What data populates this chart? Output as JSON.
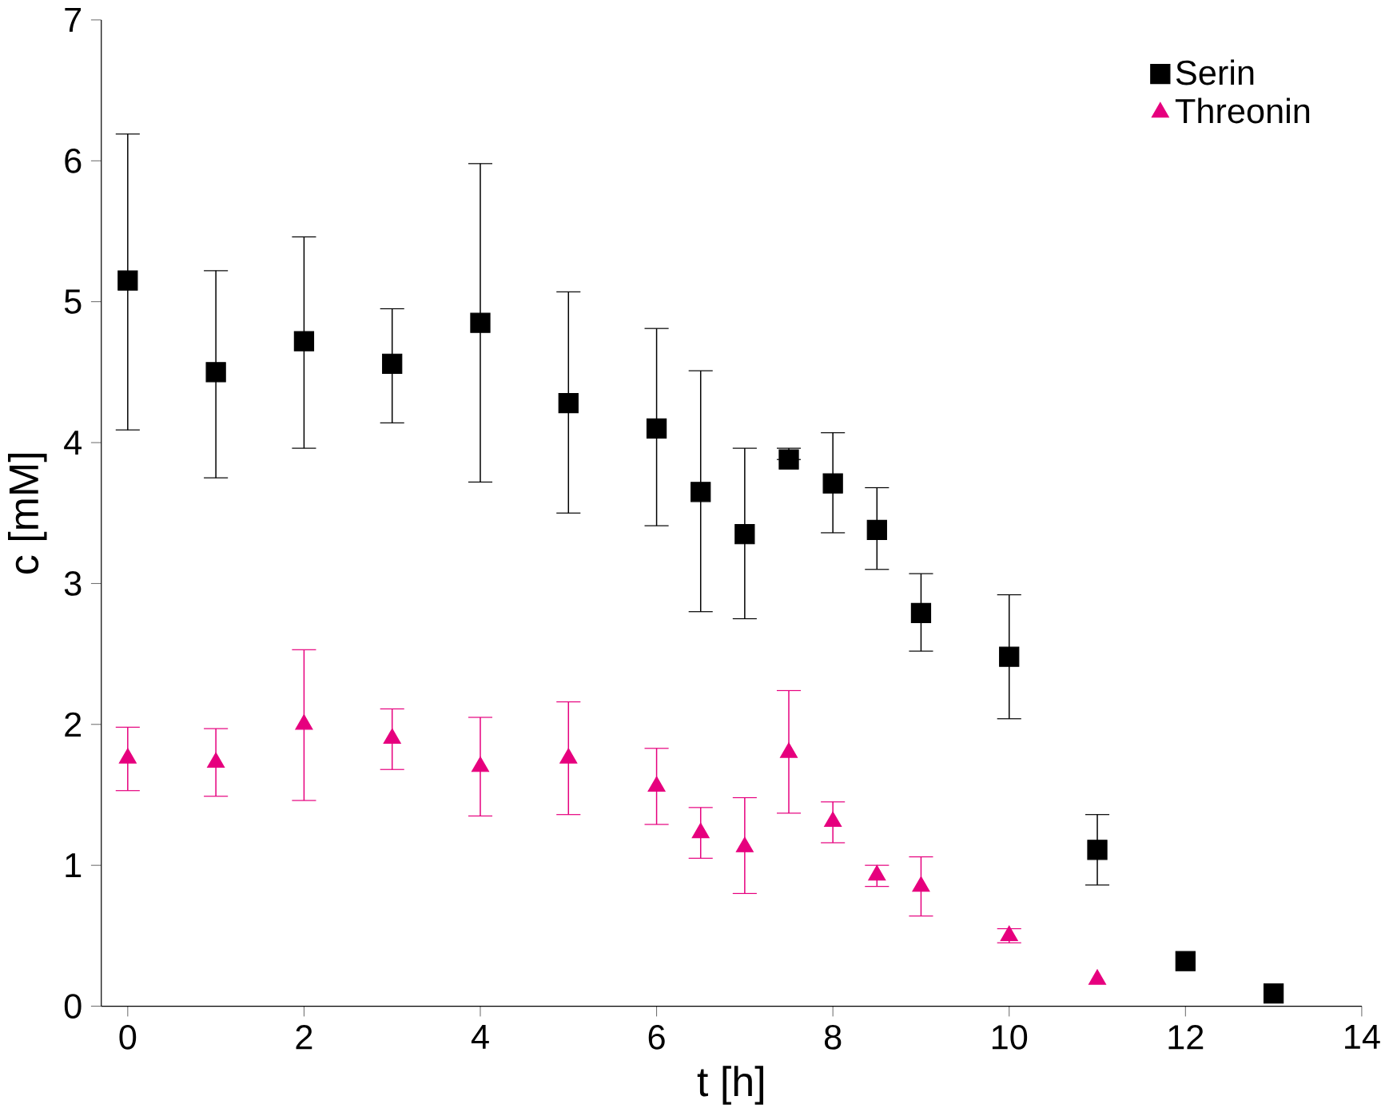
{
  "chart_data": {
    "type": "scatter",
    "xlabel": "t [h]",
    "ylabel": "c [mM]",
    "xlim": [
      -0.3,
      14
    ],
    "ylim": [
      0,
      7
    ],
    "xticks": [
      0,
      2,
      4,
      6,
      8,
      10,
      12,
      14
    ],
    "yticks": [
      0,
      1,
      2,
      3,
      4,
      5,
      6,
      7
    ],
    "grid": false,
    "legend": "top right",
    "series": [
      {
        "name": "Serin",
        "color": "#000000",
        "marker": "square",
        "x": [
          0,
          1,
          2,
          3,
          4,
          5,
          6,
          6.5,
          7,
          7.5,
          8,
          8.5,
          9,
          10,
          11,
          12,
          13
        ],
        "values": [
          5.15,
          4.5,
          4.72,
          4.56,
          4.85,
          4.28,
          4.1,
          3.65,
          3.35,
          3.88,
          3.71,
          3.38,
          2.79,
          2.48,
          1.11,
          0.32,
          0.09
        ],
        "errors": [
          [
            4.09,
            6.19
          ],
          [
            3.75,
            5.22
          ],
          [
            3.96,
            5.46
          ],
          [
            4.14,
            4.95
          ],
          [
            3.72,
            5.98
          ],
          [
            3.5,
            5.07
          ],
          [
            3.41,
            4.81
          ],
          [
            2.8,
            4.51
          ],
          [
            2.75,
            3.96
          ],
          [
            3.88,
            3.96
          ],
          [
            3.36,
            4.07
          ],
          [
            3.1,
            3.68
          ],
          [
            2.52,
            3.07
          ],
          [
            2.04,
            2.92
          ],
          [
            0.86,
            1.36
          ],
          null,
          null
        ]
      },
      {
        "name": "Threonin",
        "color": "#e6007e",
        "marker": "triangle",
        "x": [
          0,
          1,
          2,
          3,
          4,
          5,
          6,
          6.5,
          7,
          7.5,
          8,
          8.5,
          9,
          10,
          11
        ],
        "values": [
          1.76,
          1.73,
          2.0,
          1.9,
          1.7,
          1.76,
          1.56,
          1.23,
          1.13,
          1.8,
          1.31,
          0.93,
          0.85,
          0.5,
          0.19
        ],
        "errors": [
          [
            1.53,
            1.98
          ],
          [
            1.49,
            1.97
          ],
          [
            1.46,
            2.53
          ],
          [
            1.68,
            2.11
          ],
          [
            1.35,
            2.05
          ],
          [
            1.36,
            2.16
          ],
          [
            1.29,
            1.83
          ],
          [
            1.05,
            1.41
          ],
          [
            0.8,
            1.48
          ],
          [
            1.37,
            2.24
          ],
          [
            1.16,
            1.45
          ],
          [
            0.85,
            1.0
          ],
          [
            0.64,
            1.06
          ],
          [
            0.45,
            0.55
          ],
          null
        ]
      }
    ]
  }
}
